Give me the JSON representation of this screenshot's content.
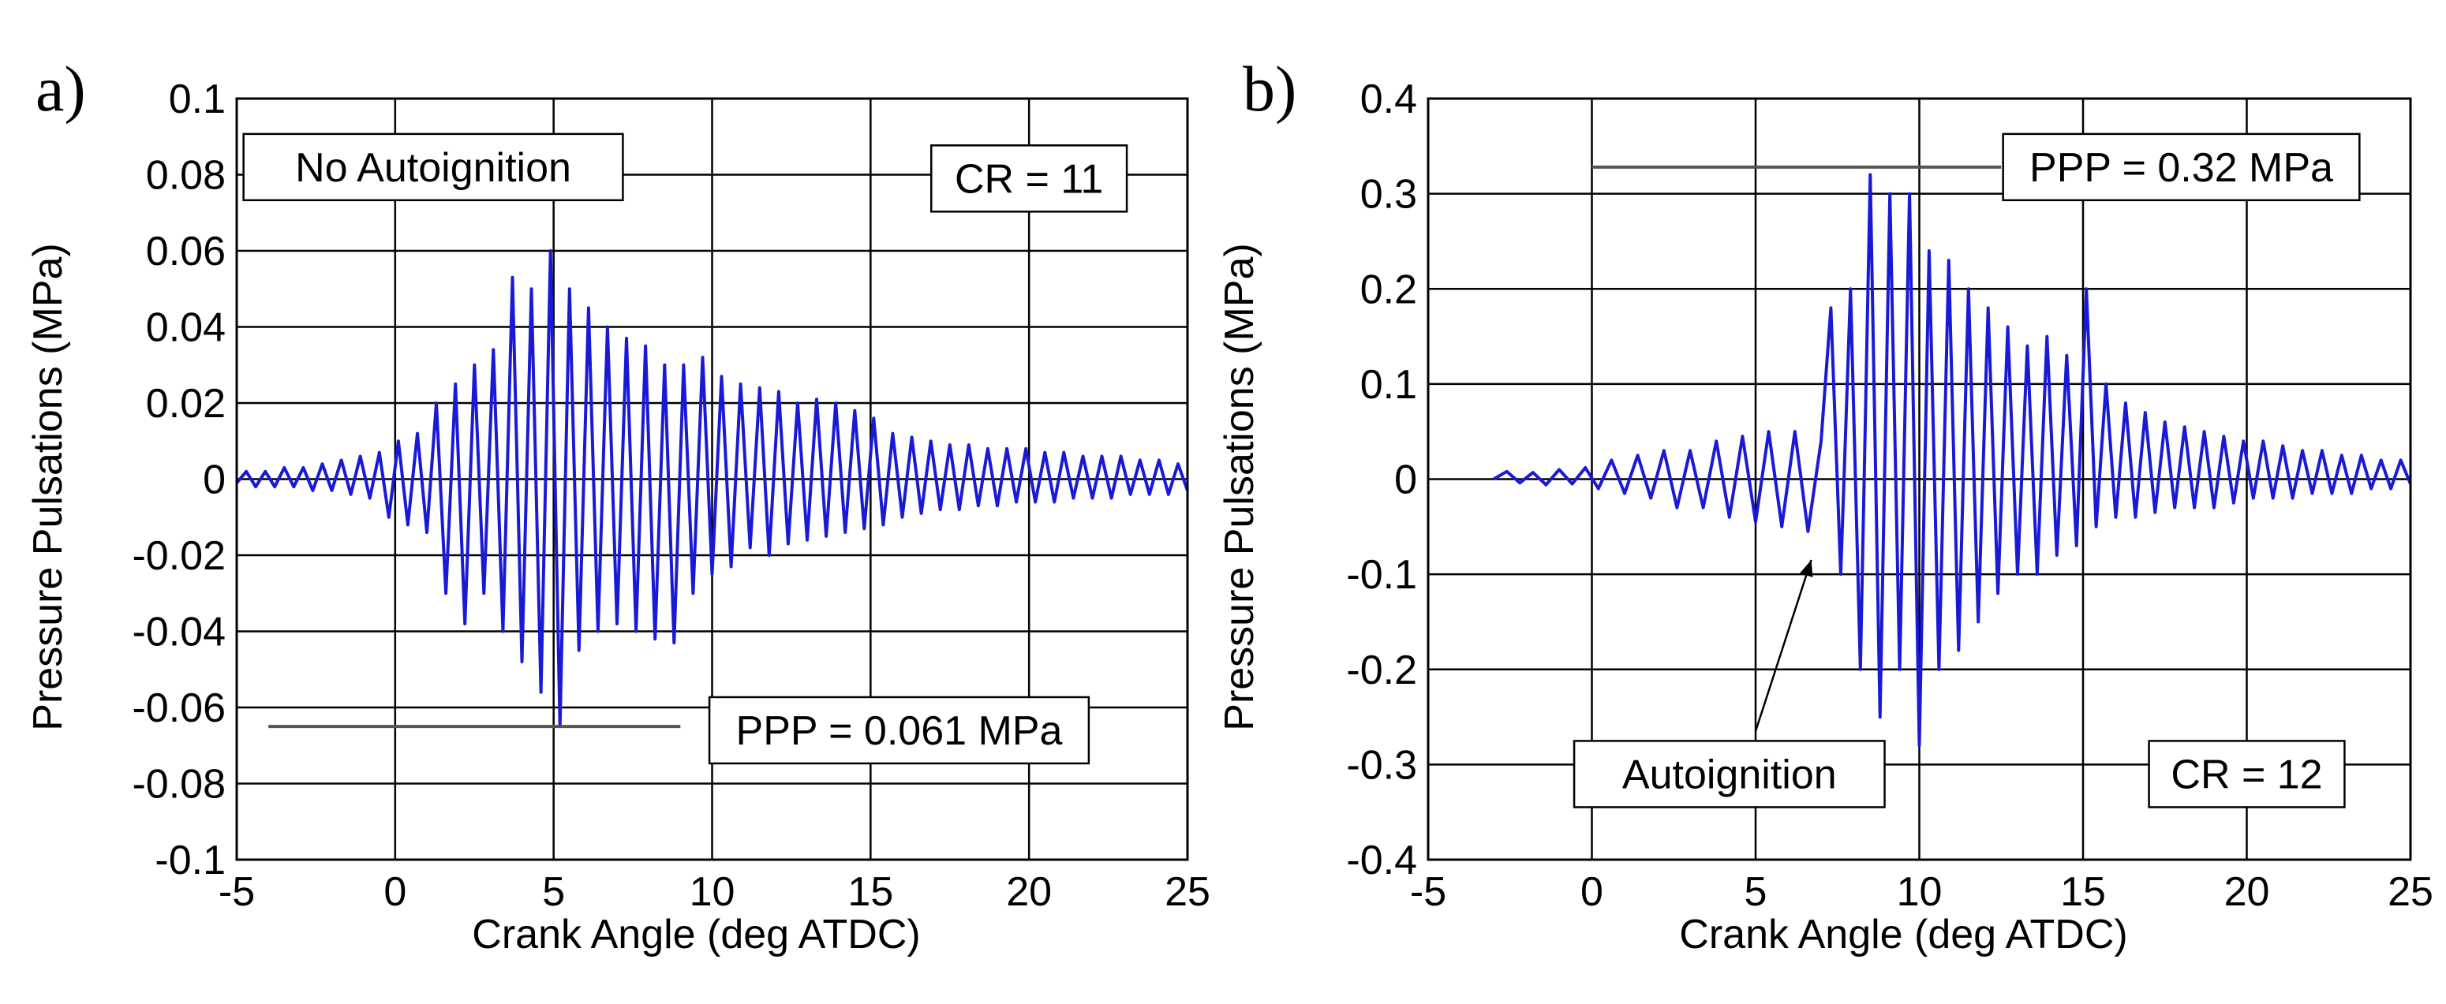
{
  "chart_data": [
    {
      "type": "line",
      "panel_label": "a)",
      "xlabel": "Crank Angle  (deg ATDC)",
      "ylabel": "Pressure Pulsations  (MPa)",
      "xlim": [
        -5,
        25
      ],
      "ylim": [
        -0.1,
        0.1
      ],
      "xticks": [
        -5,
        0,
        5,
        10,
        15,
        20,
        25
      ],
      "yticks": [
        -0.1,
        -0.08,
        -0.06,
        -0.04,
        -0.02,
        0,
        0.02,
        0.04,
        0.06,
        0.08,
        0.1
      ],
      "xtick_labels": [
        "-5",
        "0",
        "5",
        "10",
        "15",
        "20",
        "25"
      ],
      "ytick_labels": [
        "-0.1",
        "-0.08",
        "-0.06",
        "-0.04",
        "-0.02",
        "0",
        "0.02",
        "0.04",
        "0.06",
        "0.08",
        "0.1"
      ],
      "grid": true,
      "line_color": "#1a1ad6",
      "series": [
        {
          "x": [
            -5.0,
            -4.7,
            -4.4,
            -4.1,
            -3.8,
            -3.5,
            -3.2,
            -2.9,
            -2.6,
            -2.3,
            -2.0,
            -1.7,
            -1.4,
            -1.1,
            -0.8,
            -0.5,
            -0.2,
            0.1,
            0.4,
            0.7,
            1.0,
            1.3,
            1.6,
            1.9,
            2.2,
            2.5,
            2.8,
            3.1,
            3.4,
            3.7,
            4.0,
            4.3,
            4.6,
            4.9,
            5.2,
            5.5,
            5.8,
            6.1,
            6.4,
            6.7,
            7.0,
            7.3,
            7.6,
            7.9,
            8.2,
            8.5,
            8.8,
            9.1,
            9.4,
            9.7,
            10.0,
            10.3,
            10.6,
            10.9,
            11.2,
            11.5,
            11.8,
            12.1,
            12.4,
            12.7,
            13.0,
            13.3,
            13.6,
            13.9,
            14.2,
            14.5,
            14.8,
            15.1,
            15.4,
            15.7,
            16.0,
            16.3,
            16.6,
            16.9,
            17.2,
            17.5,
            17.8,
            18.1,
            18.4,
            18.7,
            19.0,
            19.3,
            19.6,
            19.9,
            20.2,
            20.5,
            20.8,
            21.1,
            21.4,
            21.7,
            22.0,
            22.3,
            22.6,
            22.9,
            23.2,
            23.5,
            23.8,
            24.1,
            24.4,
            24.7,
            25.0
          ],
          "y": [
            -0.001,
            0.002,
            -0.002,
            0.002,
            -0.002,
            0.003,
            -0.002,
            0.003,
            -0.003,
            0.004,
            -0.003,
            0.005,
            -0.004,
            0.006,
            -0.005,
            0.007,
            -0.01,
            0.01,
            -0.012,
            0.012,
            -0.014,
            0.02,
            -0.03,
            0.025,
            -0.038,
            0.03,
            -0.03,
            0.034,
            -0.04,
            0.053,
            -0.048,
            0.05,
            -0.056,
            0.06,
            -0.065,
            0.05,
            -0.045,
            0.045,
            -0.04,
            0.04,
            -0.038,
            0.037,
            -0.04,
            0.035,
            -0.042,
            0.03,
            -0.043,
            0.03,
            -0.03,
            0.032,
            -0.025,
            0.027,
            -0.023,
            0.025,
            -0.018,
            0.024,
            -0.02,
            0.023,
            -0.017,
            0.02,
            -0.016,
            0.021,
            -0.015,
            0.02,
            -0.014,
            0.018,
            -0.013,
            0.016,
            -0.012,
            0.012,
            -0.01,
            0.011,
            -0.009,
            0.01,
            -0.008,
            0.009,
            -0.008,
            0.009,
            -0.007,
            0.008,
            -0.007,
            0.008,
            -0.006,
            0.008,
            -0.006,
            0.007,
            -0.006,
            0.007,
            -0.005,
            0.006,
            -0.005,
            0.006,
            -0.005,
            0.006,
            -0.004,
            0.005,
            -0.004,
            0.005,
            -0.004,
            0.004,
            -0.003
          ]
        }
      ],
      "annotations": [
        {
          "text": "No Autoignition",
          "box_x": 1.2,
          "box_y": 0.082,
          "anchor": "middle"
        },
        {
          "text": "CR = 11",
          "box_x": 20.0,
          "box_y": 0.079,
          "anchor": "middle"
        },
        {
          "text": "PPP = 0.061 MPa",
          "box_x": 15.9,
          "box_y": -0.066,
          "anchor": "middle",
          "leader_line": {
            "x1": -4.0,
            "x2": 9.0,
            "y": -0.065
          }
        }
      ]
    },
    {
      "type": "line",
      "panel_label": "b)",
      "xlabel": "Crank Angle  (deg ATDC)",
      "ylabel": "Pressure Pulsations  (MPa)",
      "xlim": [
        -5,
        25
      ],
      "ylim": [
        -0.4,
        0.4
      ],
      "xticks": [
        -5,
        0,
        5,
        10,
        15,
        20,
        25
      ],
      "yticks": [
        -0.4,
        -0.3,
        -0.2,
        -0.1,
        0,
        0.1,
        0.2,
        0.3,
        0.4
      ],
      "xtick_labels": [
        "-5",
        "0",
        "5",
        "10",
        "15",
        "20",
        "25"
      ],
      "ytick_labels": [
        "-0.4",
        "-0.3",
        "-0.2",
        "-0.1",
        "0",
        "0.1",
        "0.2",
        "0.3",
        "0.4"
      ],
      "grid": true,
      "line_color": "#1a1ad6",
      "series": [
        {
          "x": [
            -3.0,
            -2.6,
            -2.2,
            -1.8,
            -1.4,
            -1.0,
            -0.6,
            -0.2,
            0.2,
            0.6,
            1.0,
            1.4,
            1.8,
            2.2,
            2.6,
            3.0,
            3.4,
            3.8,
            4.2,
            4.6,
            5.0,
            5.4,
            5.8,
            6.2,
            6.6,
            7.0,
            7.3,
            7.6,
            7.9,
            8.2,
            8.5,
            8.8,
            9.1,
            9.4,
            9.7,
            10.0,
            10.3,
            10.6,
            10.9,
            11.2,
            11.5,
            11.8,
            12.1,
            12.4,
            12.7,
            13.0,
            13.3,
            13.6,
            13.9,
            14.2,
            14.5,
            14.8,
            15.1,
            15.4,
            15.7,
            16.0,
            16.3,
            16.6,
            16.9,
            17.2,
            17.5,
            17.8,
            18.1,
            18.4,
            18.7,
            19.0,
            19.3,
            19.6,
            19.9,
            20.2,
            20.5,
            20.8,
            21.1,
            21.4,
            21.7,
            22.0,
            22.3,
            22.6,
            22.9,
            23.2,
            23.5,
            23.8,
            24.1,
            24.4,
            24.7,
            25.0
          ],
          "y": [
            0.0,
            0.008,
            -0.004,
            0.007,
            -0.006,
            0.01,
            -0.005,
            0.012,
            -0.01,
            0.02,
            -0.015,
            0.025,
            -0.02,
            0.03,
            -0.03,
            0.03,
            -0.03,
            0.04,
            -0.04,
            0.045,
            -0.045,
            0.05,
            -0.05,
            0.05,
            -0.055,
            0.04,
            0.18,
            -0.1,
            0.2,
            -0.2,
            0.32,
            -0.25,
            0.3,
            -0.2,
            0.3,
            -0.28,
            0.24,
            -0.2,
            0.23,
            -0.18,
            0.2,
            -0.15,
            0.18,
            -0.12,
            0.16,
            -0.1,
            0.14,
            -0.1,
            0.15,
            -0.08,
            0.13,
            -0.07,
            0.2,
            -0.05,
            0.1,
            -0.04,
            0.08,
            -0.04,
            0.07,
            -0.035,
            0.06,
            -0.03,
            0.055,
            -0.03,
            0.05,
            -0.03,
            0.045,
            -0.025,
            0.04,
            -0.02,
            0.04,
            -0.02,
            0.035,
            -0.02,
            0.03,
            -0.015,
            0.03,
            -0.015,
            0.025,
            -0.015,
            0.025,
            -0.01,
            0.02,
            -0.01,
            0.02,
            -0.005
          ]
        }
      ],
      "annotations": [
        {
          "text": "PPP = 0.32 MPa",
          "box_x": 18.0,
          "box_y": 0.328,
          "anchor": "middle",
          "leader_line": {
            "x1": 0.0,
            "x2": 12.5,
            "y": 0.328
          }
        },
        {
          "text": "Autoignition",
          "box_x": 4.2,
          "box_y": -0.31,
          "anchor": "middle",
          "arrow": {
            "x1": 5.0,
            "y1": -0.265,
            "x2": 6.7,
            "y2": -0.085
          }
        },
        {
          "text": "CR = 12",
          "box_x": 20.0,
          "box_y": -0.31,
          "anchor": "middle"
        }
      ]
    }
  ]
}
